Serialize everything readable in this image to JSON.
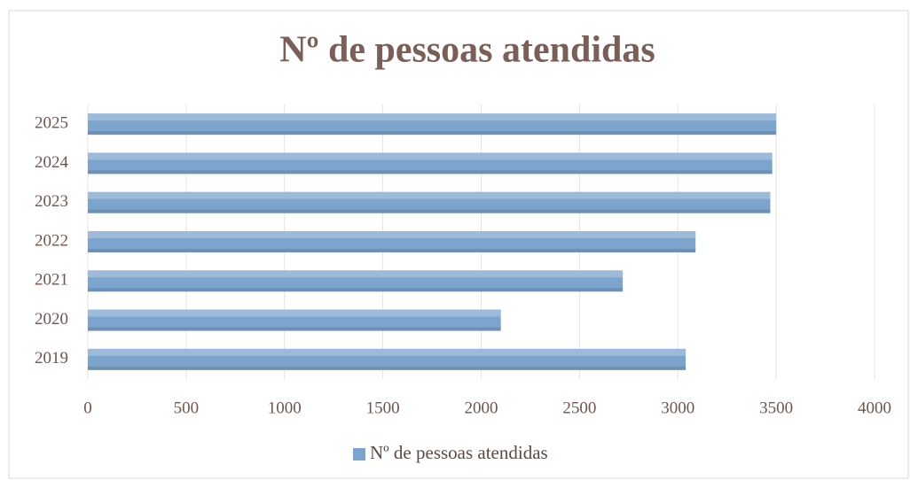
{
  "chart_data": {
    "type": "bar",
    "orientation": "horizontal",
    "title": "Nº de pessoas atendidas",
    "categories": [
      "2019",
      "2020",
      "2021",
      "2022",
      "2023",
      "2024",
      "2025"
    ],
    "series": [
      {
        "name": "Nº de pessoas atendidas",
        "color": "#7da4cc",
        "values": [
          3040,
          2100,
          2720,
          3090,
          3470,
          3480,
          3500
        ]
      }
    ],
    "xlim": [
      0,
      4000
    ],
    "xticks": [
      0,
      500,
      1000,
      1500,
      2000,
      2500,
      3000,
      3500,
      4000
    ],
    "grid": true,
    "legend": "bottom"
  }
}
